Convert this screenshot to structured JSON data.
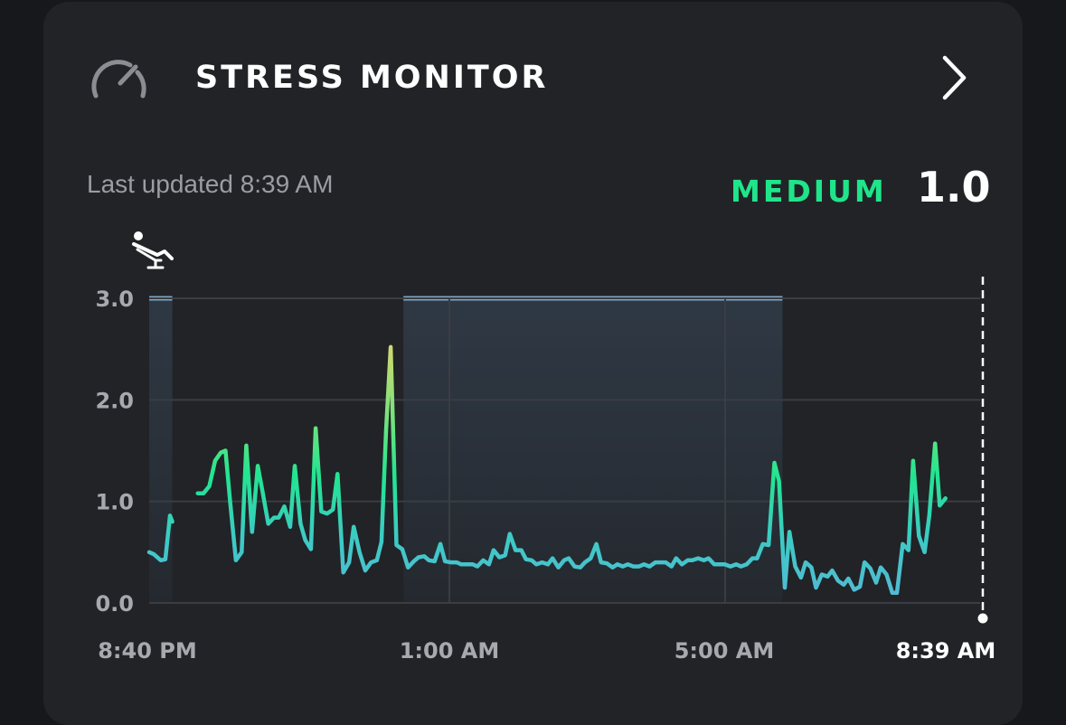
{
  "header": {
    "title": "STRESS MONITOR",
    "icon": "gauge-icon",
    "chevron_icon": "chevron-right-icon"
  },
  "status": {
    "last_updated": "Last updated 8:39 AM",
    "level": "MEDIUM",
    "score": "1.0",
    "level_color": "#1fe58a"
  },
  "icons": {
    "relax": "recliner-icon",
    "sleep": "moon-icon"
  },
  "chart_data": {
    "type": "line",
    "title": "",
    "xlabel": "",
    "ylabel": "",
    "ylim": [
      0,
      3
    ],
    "y_ticks": [
      "3.0",
      "2.0",
      "1.0",
      "0.0"
    ],
    "x_ticks": [
      "8:40 PM",
      "1:00 AM",
      "5:00 AM",
      "8:39 AM"
    ],
    "x_range_minutes": [
      0,
      719
    ],
    "grid": true,
    "colors": {
      "low": "#55b8d6",
      "mid": "#22e590",
      "high": "#d8d870",
      "band": "#7fa6c4"
    },
    "activity_bands": [
      {
        "type": "relax",
        "x_start": 0,
        "x_end": 20,
        "y": 3.0
      },
      {
        "type": "sleep",
        "x_start": 220,
        "x_end": 548,
        "y": 3.0
      }
    ],
    "series": [
      {
        "values": [
          [
            0,
            0.5
          ],
          [
            4,
            0.48
          ],
          [
            10,
            0.42
          ],
          [
            14,
            0.43
          ],
          [
            18,
            0.86
          ],
          [
            20,
            0.8
          ]
        ]
      },
      {
        "values": [
          [
            42,
            1.08
          ],
          [
            47,
            1.08
          ],
          [
            52,
            1.15
          ],
          [
            57,
            1.4
          ],
          [
            62,
            1.48
          ],
          [
            66,
            1.5
          ],
          [
            70,
            1.0
          ],
          [
            75,
            0.42
          ],
          [
            80,
            0.5
          ],
          [
            84,
            1.55
          ],
          [
            89,
            0.7
          ],
          [
            94,
            1.35
          ],
          [
            98,
            1.1
          ],
          [
            103,
            0.78
          ],
          [
            108,
            0.84
          ],
          [
            112,
            0.84
          ],
          [
            117,
            0.95
          ],
          [
            122,
            0.75
          ],
          [
            126,
            1.35
          ],
          [
            131,
            0.78
          ],
          [
            135,
            0.62
          ],
          [
            140,
            0.53
          ],
          [
            144,
            1.72
          ],
          [
            149,
            0.9
          ],
          [
            154,
            0.88
          ],
          [
            159,
            0.92
          ],
          [
            163,
            1.27
          ],
          [
            168,
            0.3
          ],
          [
            173,
            0.4
          ],
          [
            177,
            0.75
          ],
          [
            182,
            0.5
          ],
          [
            187,
            0.32
          ],
          [
            192,
            0.4
          ],
          [
            197,
            0.42
          ],
          [
            201,
            0.6
          ],
          [
            205,
            1.7
          ],
          [
            209,
            2.52
          ],
          [
            214,
            0.57
          ],
          [
            219,
            0.53
          ],
          [
            224,
            0.35
          ],
          [
            229,
            0.41
          ],
          [
            233,
            0.45
          ],
          [
            238,
            0.46
          ],
          [
            242,
            0.42
          ],
          [
            247,
            0.41
          ],
          [
            252,
            0.58
          ],
          [
            256,
            0.41
          ],
          [
            261,
            0.4
          ],
          [
            266,
            0.4
          ],
          [
            270,
            0.38
          ],
          [
            275,
            0.38
          ],
          [
            280,
            0.38
          ],
          [
            284,
            0.36
          ],
          [
            289,
            0.42
          ],
          [
            294,
            0.38
          ],
          [
            298,
            0.52
          ],
          [
            303,
            0.45
          ],
          [
            308,
            0.47
          ],
          [
            312,
            0.68
          ],
          [
            317,
            0.52
          ],
          [
            322,
            0.52
          ],
          [
            326,
            0.43
          ],
          [
            331,
            0.42
          ],
          [
            335,
            0.38
          ],
          [
            340,
            0.4
          ],
          [
            345,
            0.38
          ],
          [
            349,
            0.44
          ],
          [
            354,
            0.35
          ],
          [
            359,
            0.42
          ],
          [
            363,
            0.44
          ],
          [
            368,
            0.36
          ],
          [
            373,
            0.35
          ],
          [
            377,
            0.4
          ],
          [
            382,
            0.44
          ],
          [
            387,
            0.58
          ],
          [
            391,
            0.4
          ],
          [
            396,
            0.39
          ],
          [
            401,
            0.35
          ],
          [
            405,
            0.38
          ],
          [
            410,
            0.36
          ],
          [
            414,
            0.38
          ],
          [
            419,
            0.36
          ],
          [
            424,
            0.36
          ],
          [
            428,
            0.38
          ],
          [
            433,
            0.36
          ],
          [
            438,
            0.4
          ],
          [
            442,
            0.4
          ],
          [
            447,
            0.4
          ],
          [
            452,
            0.36
          ],
          [
            456,
            0.44
          ],
          [
            461,
            0.38
          ],
          [
            466,
            0.42
          ],
          [
            470,
            0.42
          ],
          [
            475,
            0.44
          ],
          [
            480,
            0.42
          ],
          [
            484,
            0.44
          ],
          [
            489,
            0.38
          ],
          [
            494,
            0.38
          ],
          [
            498,
            0.38
          ],
          [
            503,
            0.36
          ],
          [
            508,
            0.38
          ],
          [
            512,
            0.36
          ],
          [
            517,
            0.38
          ],
          [
            522,
            0.44
          ],
          [
            526,
            0.44
          ],
          [
            531,
            0.58
          ],
          [
            536,
            0.57
          ],
          [
            541,
            1.38
          ],
          [
            545,
            1.2
          ],
          [
            550,
            0.15
          ],
          [
            554,
            0.7
          ],
          [
            559,
            0.36
          ],
          [
            564,
            0.25
          ],
          [
            568,
            0.4
          ],
          [
            573,
            0.35
          ],
          [
            577,
            0.15
          ],
          [
            582,
            0.28
          ],
          [
            587,
            0.26
          ],
          [
            591,
            0.32
          ],
          [
            596,
            0.22
          ],
          [
            601,
            0.18
          ],
          [
            605,
            0.24
          ],
          [
            610,
            0.13
          ],
          [
            615,
            0.16
          ],
          [
            619,
            0.4
          ],
          [
            624,
            0.34
          ],
          [
            629,
            0.2
          ],
          [
            633,
            0.35
          ],
          [
            638,
            0.28
          ],
          [
            643,
            0.1
          ],
          [
            647,
            0.1
          ],
          [
            652,
            0.58
          ],
          [
            657,
            0.52
          ],
          [
            661,
            1.4
          ],
          [
            666,
            0.66
          ],
          [
            671,
            0.5
          ],
          [
            675,
            0.86
          ],
          [
            680,
            1.57
          ],
          [
            684,
            0.96
          ],
          [
            689,
            1.03
          ]
        ]
      }
    ]
  }
}
